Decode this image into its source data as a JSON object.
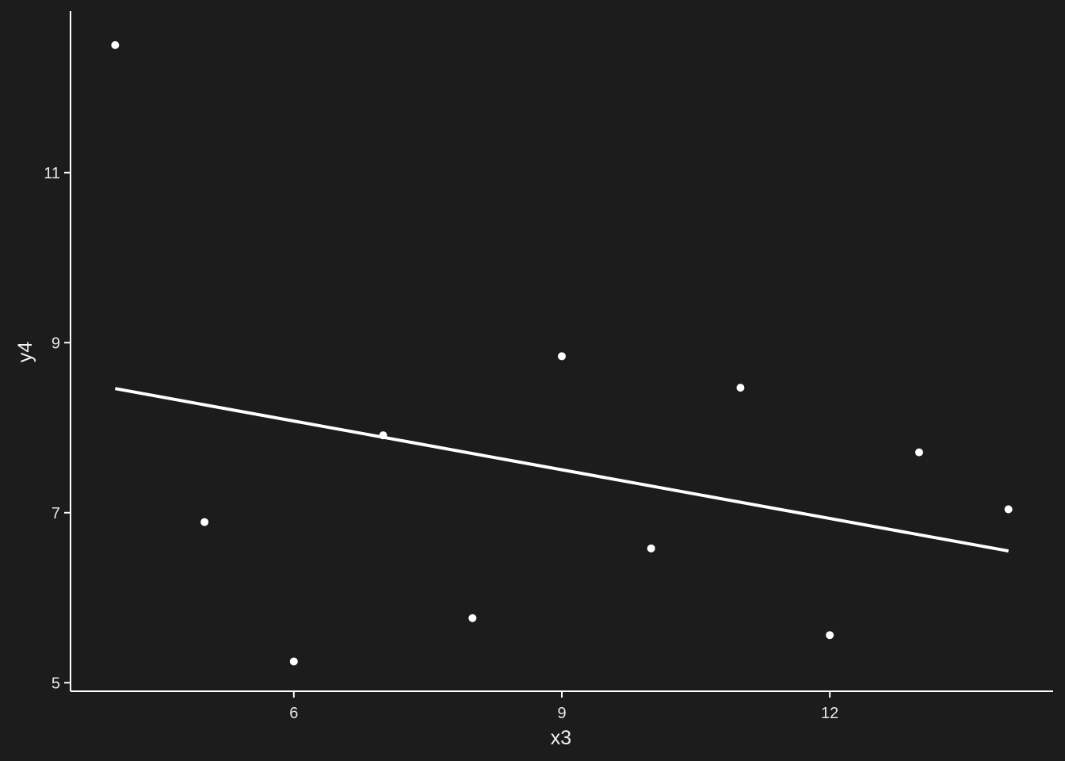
{
  "colors": {
    "background": "#1c1c1c",
    "foreground": "#ffffff",
    "text": "#e8e8e8"
  },
  "chart_data": {
    "type": "scatter",
    "title": "",
    "xlabel": "x3",
    "ylabel": "y4",
    "xlim": [
      3.5,
      14.5
    ],
    "ylim": [
      4.9,
      12.9
    ],
    "grid": false,
    "xticks": [
      6,
      9,
      12
    ],
    "yticks": [
      5,
      7,
      9,
      11
    ],
    "x": [
      4,
      5,
      6,
      7,
      8,
      9,
      10,
      11,
      12,
      13,
      14
    ],
    "y": [
      12.5,
      6.89,
      5.25,
      7.91,
      5.76,
      8.84,
      6.58,
      8.47,
      5.56,
      7.71,
      7.04
    ],
    "trend_line": {
      "x": [
        4,
        14
      ],
      "y": [
        8.46,
        6.55
      ]
    }
  }
}
